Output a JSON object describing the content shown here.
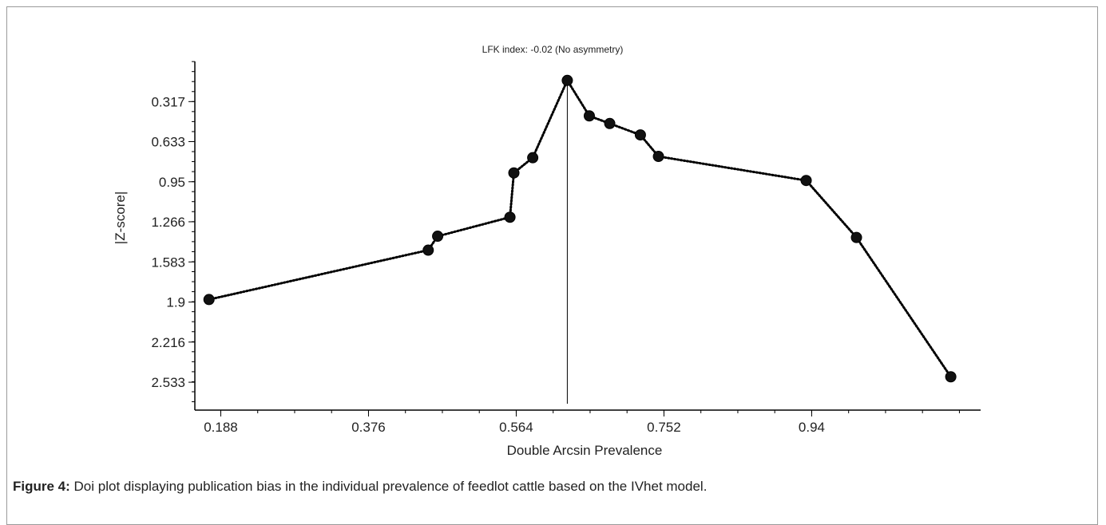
{
  "chart_data": {
    "type": "line",
    "title": "LFK index: -0.02 (No asymmetry)",
    "xlabel": "Double Arcsin Prevalence",
    "ylabel": "|Z-score|",
    "x_ticks": [
      "0.188",
      "0.376",
      "0.564",
      "0.752",
      "0.94"
    ],
    "y_ticks": [
      "0.317",
      "0.633",
      "0.95",
      "1.266",
      "1.583",
      "1.9",
      "2.216",
      "2.533"
    ],
    "xlim": [
      0.155,
      1.155
    ],
    "ylim": [
      0.0,
      2.753
    ],
    "y_inverted": true,
    "reference_line_x": 0.629,
    "grid": false,
    "series": [
      {
        "style": "dotted",
        "points": [
          {
            "x": 0.173,
            "y": 1.88
          },
          {
            "x": 0.452,
            "y": 1.49
          },
          {
            "x": 0.464,
            "y": 1.38
          },
          {
            "x": 0.556,
            "y": 1.23
          },
          {
            "x": 0.561,
            "y": 0.88
          },
          {
            "x": 0.585,
            "y": 0.76
          },
          {
            "x": 0.629,
            "y": 0.15
          },
          {
            "x": 0.657,
            "y": 0.43
          },
          {
            "x": 0.683,
            "y": 0.49
          },
          {
            "x": 0.722,
            "y": 0.58
          },
          {
            "x": 0.745,
            "y": 0.75
          },
          {
            "x": 0.933,
            "y": 0.94
          },
          {
            "x": 0.997,
            "y": 1.39
          },
          {
            "x": 1.117,
            "y": 2.49
          }
        ]
      }
    ]
  },
  "caption": {
    "label": "Figure 4:",
    "text": " Doi plot displaying publication bias in the individual prevalence of feedlot cattle based on the IVhet model."
  }
}
